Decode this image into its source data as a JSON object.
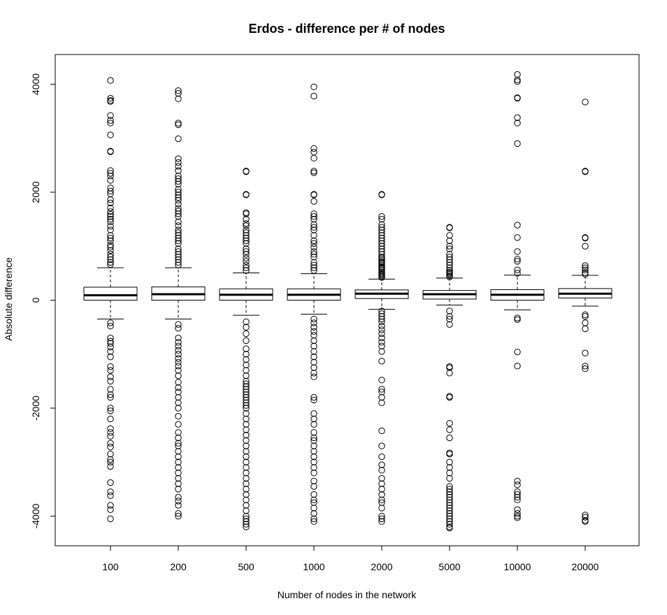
{
  "chart_data": {
    "type": "boxplot",
    "title": "Erdos - difference per # of nodes",
    "xlabel": "Number of nodes in the network",
    "ylabel": "Absolute difference",
    "ylim": [
      -4550,
      4550
    ],
    "yticks": [
      -4000,
      -2000,
      0,
      2000,
      4000
    ],
    "grid": false,
    "categories": [
      "100",
      "200",
      "500",
      "1000",
      "2000",
      "5000",
      "10000",
      "20000"
    ],
    "boxes": [
      {
        "category": "100",
        "whisker_low": -350,
        "q1": 0,
        "median": 90,
        "q3": 240,
        "whisker_high": 600,
        "outliers": [
          4070,
          3740,
          3700,
          3680,
          3420,
          3330,
          3280,
          3060,
          2760,
          2750,
          2400,
          2350,
          2300,
          2220,
          2080,
          2020,
          1970,
          1860,
          1800,
          1710,
          1640,
          1590,
          1550,
          1500,
          1450,
          1370,
          1300,
          1200,
          1150,
          1100,
          1020,
          980,
          920,
          850,
          800,
          750,
          700,
          660,
          -420,
          -480,
          -700,
          -760,
          -800,
          -870,
          -950,
          -1050,
          -1230,
          -1300,
          -1420,
          -1500,
          -1650,
          -1750,
          -1800,
          -2000,
          -2050,
          -2200,
          -2380,
          -2450,
          -2520,
          -2650,
          -2720,
          -2850,
          -2950,
          -3000,
          -3080,
          -3380,
          -3550,
          -3620,
          -3800,
          -3880,
          -4050
        ]
      },
      {
        "category": "200",
        "whisker_low": -350,
        "q1": 0,
        "median": 110,
        "q3": 245,
        "whisker_high": 600,
        "outliers": [
          3880,
          3830,
          3730,
          3280,
          3250,
          2990,
          2620,
          2550,
          2480,
          2400,
          2300,
          2250,
          2200,
          2150,
          2050,
          2000,
          1950,
          1900,
          1850,
          1780,
          1700,
          1650,
          1600,
          1550,
          1450,
          1380,
          1300,
          1250,
          1200,
          1150,
          1100,
          1050,
          950,
          900,
          850,
          800,
          750,
          700,
          650,
          -450,
          -520,
          -700,
          -780,
          -850,
          -930,
          -1000,
          -1080,
          -1150,
          -1220,
          -1300,
          -1400,
          -1520,
          -1620,
          -1700,
          -1800,
          -1900,
          -2000,
          -2150,
          -2300,
          -2450,
          -2550,
          -2650,
          -2700,
          -2800,
          -2900,
          -3000,
          -3100,
          -3200,
          -3300,
          -3400,
          -3500,
          -3650,
          -3720,
          -3800,
          -3950,
          -4000
        ]
      },
      {
        "category": "500",
        "whisker_low": -280,
        "q1": 0,
        "median": 100,
        "q3": 210,
        "whisker_high": 505,
        "outliers": [
          2390,
          2380,
          1960,
          1950,
          1620,
          1600,
          1500,
          1420,
          1380,
          1300,
          1250,
          1200,
          1150,
          1100,
          1050,
          950,
          900,
          850,
          780,
          720,
          650,
          600,
          550,
          -400,
          -500,
          -620,
          -750,
          -900,
          -1000,
          -1100,
          -1200,
          -1300,
          -1400,
          -1500,
          -1550,
          -1600,
          -1650,
          -1700,
          -1750,
          -1800,
          -1850,
          -1900,
          -1950,
          -2000,
          -2100,
          -2200,
          -2300,
          -2400,
          -2500,
          -2600,
          -2700,
          -2800,
          -2900,
          -3000,
          -3100,
          -3200,
          -3300,
          -3400,
          -3500,
          -3600,
          -3700,
          -3800,
          -3900,
          -4000,
          -4050,
          -4100,
          -4150,
          -4200
        ]
      },
      {
        "category": "1000",
        "whisker_low": -260,
        "q1": 0,
        "median": 100,
        "q3": 210,
        "whisker_high": 490,
        "outliers": [
          3950,
          3780,
          2810,
          2740,
          2630,
          2390,
          2360,
          1960,
          1950,
          1830,
          1600,
          1550,
          1500,
          1400,
          1350,
          1300,
          1200,
          1100,
          1050,
          980,
          900,
          850,
          800,
          700,
          650,
          600,
          550,
          -350,
          -420,
          -500,
          -580,
          -650,
          -750,
          -850,
          -950,
          -1050,
          -1150,
          -1250,
          -1350,
          -1420,
          -1800,
          -1850,
          -2100,
          -2200,
          -2300,
          -2450,
          -2550,
          -2600,
          -2700,
          -2800,
          -2900,
          -3000,
          -3100,
          -3200,
          -3350,
          -3450,
          -3600,
          -3700,
          -3750,
          -3850,
          -3950,
          -4050,
          -4100
        ]
      },
      {
        "category": "2000",
        "whisker_low": -170,
        "q1": 30,
        "median": 120,
        "q3": 190,
        "whisker_high": 390,
        "outliers": [
          1960,
          1950,
          1550,
          1500,
          1400,
          1350,
          1300,
          1250,
          1200,
          1150,
          1100,
          1050,
          1000,
          950,
          900,
          850,
          800,
          780,
          750,
          720,
          700,
          680,
          650,
          620,
          600,
          580,
          550,
          520,
          500,
          480,
          460,
          440,
          420,
          -200,
          -250,
          -300,
          -350,
          -400,
          -480,
          -550,
          -620,
          -700,
          -780,
          -850,
          -950,
          -1130,
          -1480,
          -1650,
          -1700,
          -1800,
          -1900,
          -2420,
          -2700,
          -2900,
          -3050,
          -3150,
          -3300,
          -3400,
          -3500,
          -3600,
          -3700,
          -3750,
          -3850,
          -4000,
          -4050,
          -4100
        ]
      },
      {
        "category": "5000",
        "whisker_low": -90,
        "q1": 20,
        "median": 110,
        "q3": 180,
        "whisker_high": 410,
        "outliers": [
          1350,
          1340,
          1200,
          1100,
          1000,
          950,
          850,
          800,
          750,
          700,
          650,
          600,
          550,
          520,
          500,
          480,
          450,
          430,
          -200,
          -300,
          -350,
          -450,
          -1230,
          -1250,
          -1350,
          -1780,
          -1800,
          -2280,
          -2400,
          -2550,
          -2830,
          -2850,
          -3000,
          -3100,
          -3200,
          -3300,
          -3450,
          -3500,
          -3550,
          -3600,
          -3650,
          -3700,
          -3750,
          -3800,
          -3850,
          -3900,
          -3950,
          -4000,
          -4050,
          -4100,
          -4150,
          -4200,
          -4220
        ]
      },
      {
        "category": "10000",
        "whisker_low": -180,
        "q1": 0,
        "median": 100,
        "q3": 195,
        "whisker_high": 465,
        "outliers": [
          4180,
          4080,
          4050,
          3750,
          3740,
          3380,
          3280,
          2900,
          1390,
          1160,
          900,
          760,
          720,
          560,
          500,
          -330,
          -360,
          -960,
          -1220,
          -3350,
          -3420,
          -3550,
          -3600,
          -3650,
          -3700,
          -3880,
          -3950,
          -4000,
          -4030
        ]
      },
      {
        "category": "20000",
        "whisker_low": -110,
        "q1": 40,
        "median": 120,
        "q3": 215,
        "whisker_high": 460,
        "outliers": [
          3670,
          2390,
          2380,
          1160,
          1150,
          1000,
          640,
          600,
          560,
          510,
          480,
          -270,
          -300,
          -420,
          -530,
          -980,
          -1220,
          -1270,
          -3980,
          -4020,
          -4080,
          -4100
        ]
      }
    ]
  }
}
